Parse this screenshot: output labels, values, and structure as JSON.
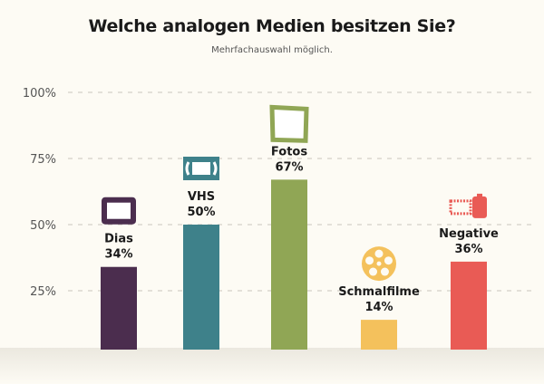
{
  "chart_data": {
    "type": "bar",
    "title": "Welche analogen Medien besitzen Sie?",
    "subtitle": "Mehrfachauswahl möglich.",
    "xlabel": "",
    "ylabel": "",
    "ylim": [
      0,
      100
    ],
    "yticks": [
      25,
      50,
      75,
      100
    ],
    "ytick_labels": [
      "25%",
      "50%",
      "75%",
      "100%"
    ],
    "grid": true,
    "categories": [
      "Dias",
      "VHS",
      "Fotos",
      "Schmalfilme",
      "Negative"
    ],
    "values": [
      34,
      50,
      67,
      14,
      36
    ],
    "value_labels": [
      "34%",
      "50%",
      "67%",
      "14%",
      "36%"
    ],
    "icons": [
      "slide-icon",
      "vhs-cassette-icon",
      "photo-icon",
      "film-reel-icon",
      "film-roll-icon"
    ],
    "colors": [
      "#4b2d4e",
      "#3e818a",
      "#90a655",
      "#f4c15c",
      "#e95b55"
    ]
  }
}
